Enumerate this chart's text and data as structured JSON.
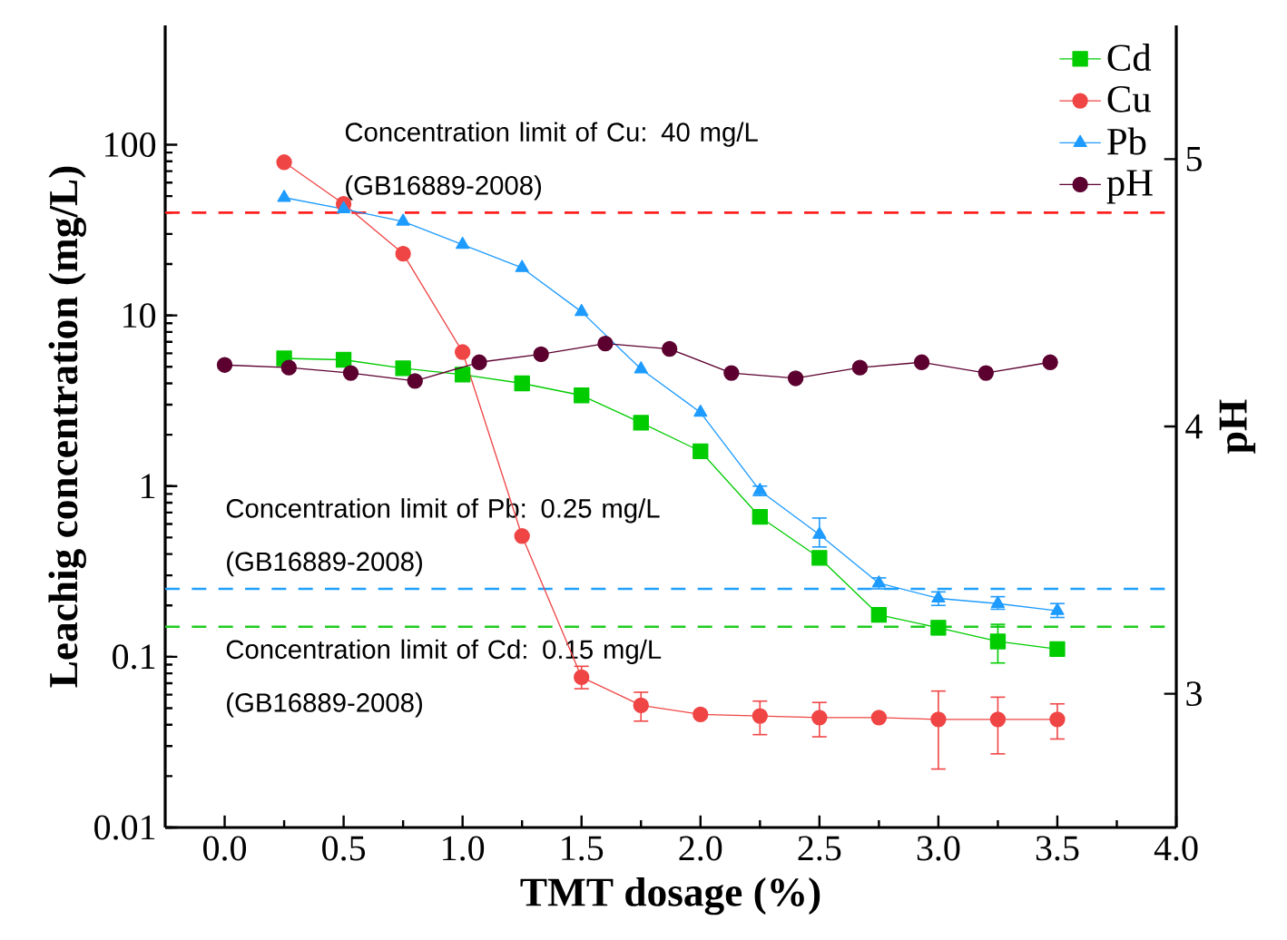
{
  "chart_data": {
    "type": "line",
    "xlabel": "TMT dosage (%)",
    "ylabel": "Leachig concentration (mg/L)",
    "y2label": "pH",
    "xlim": [
      -0.25,
      4.0
    ],
    "xticks": [
      {
        "value": 0,
        "label": "0.0"
      },
      {
        "value": 0.5,
        "label": "0.5"
      },
      {
        "value": 1,
        "label": "1.0"
      },
      {
        "value": 1.5,
        "label": "1.5"
      },
      {
        "value": 2,
        "label": "2.0"
      },
      {
        "value": 2.5,
        "label": "2.5"
      },
      {
        "value": 3,
        "label": "3.0"
      },
      {
        "value": 3.5,
        "label": "3.5"
      },
      {
        "value": 4,
        "label": "4.0"
      }
    ],
    "ylim": [
      0.01,
      500
    ],
    "yticks": [
      0.01,
      0.1,
      1,
      10,
      100
    ],
    "log": "y",
    "y2lim": [
      2.5,
      5.5
    ],
    "y2ticks": [
      3,
      4,
      5
    ],
    "grid": false,
    "legend": "top right",
    "series": [
      {
        "name": "Cd",
        "color": "#00cc00",
        "marker": "square",
        "x": [
          0.25,
          0.5,
          0.75,
          1.0,
          1.25,
          1.5,
          1.75,
          2.0,
          2.25,
          2.5,
          2.75,
          3.0,
          3.25,
          3.5
        ],
        "values": [
          5.6,
          5.5,
          4.9,
          4.5,
          4.0,
          3.4,
          2.35,
          1.6,
          0.66,
          0.38,
          0.176,
          0.148,
          0.123,
          0.111
        ],
        "errors": [
          null,
          null,
          null,
          null,
          null,
          null,
          null,
          null,
          null,
          null,
          [
            0.162,
            0.19
          ],
          [
            0.135,
            0.162
          ],
          [
            0.092,
            0.155
          ],
          [
            0.104,
            0.118
          ]
        ]
      },
      {
        "name": "Cu",
        "color": "#f04545",
        "marker": "circle",
        "x": [
          0.25,
          0.5,
          0.75,
          1.0,
          1.25,
          1.5,
          1.75,
          2.0,
          2.25,
          2.5,
          2.75,
          3.0,
          3.25,
          3.5
        ],
        "values": [
          79,
          45,
          23,
          6.1,
          0.51,
          0.076,
          0.052,
          0.046,
          0.045,
          0.044,
          0.044,
          0.043,
          0.043,
          0.043
        ],
        "errors": [
          null,
          null,
          null,
          null,
          null,
          [
            0.065,
            0.088
          ],
          [
            0.042,
            0.062
          ],
          null,
          [
            0.035,
            0.055
          ],
          [
            0.034,
            0.054
          ],
          null,
          [
            0.022,
            0.063
          ],
          [
            0.027,
            0.058
          ],
          [
            0.033,
            0.053
          ]
        ]
      },
      {
        "name": "Pb",
        "color": "#1e9bff",
        "marker": "triangle",
        "x": [
          0.25,
          0.5,
          0.75,
          1.0,
          1.25,
          1.5,
          1.75,
          2.0,
          2.25,
          2.5,
          2.75,
          3.0,
          3.25,
          3.5
        ],
        "values": [
          49,
          42,
          35.5,
          26,
          19,
          10.5,
          4.85,
          2.7,
          0.94,
          0.52,
          0.27,
          0.22,
          0.205,
          0.186
        ],
        "errors": [
          null,
          null,
          null,
          null,
          null,
          null,
          null,
          null,
          [
            0.88,
            1.0
          ],
          [
            0.44,
            0.65
          ],
          [
            0.25,
            0.29
          ],
          [
            0.2,
            0.24
          ],
          [
            0.19,
            0.225
          ],
          [
            0.17,
            0.205
          ]
        ]
      },
      {
        "name": "pH",
        "color": "#5c0030",
        "marker": "circle",
        "axis": "y2",
        "x": [
          0,
          0.27,
          0.53,
          0.8,
          1.07,
          1.33,
          1.6,
          1.87,
          2.13,
          2.4,
          2.67,
          2.93,
          3.2,
          3.47
        ],
        "values": [
          4.23,
          4.22,
          4.2,
          4.17,
          4.24,
          4.27,
          4.31,
          4.29,
          4.2,
          4.18,
          4.22,
          4.24,
          4.2,
          4.24
        ]
      }
    ],
    "ref_lines": [
      {
        "axis": "y",
        "value": 40,
        "label": "Concentration limit of Cu: 40 mg/L (GB16889-2008)",
        "color": "#ff2020",
        "line_style": "dashed"
      },
      {
        "axis": "y",
        "value": 0.25,
        "label": "Concentration limit of Pb: 0.25 mg/L (GB16889-2008)",
        "color": "#20a0ff",
        "line_style": "dashed"
      },
      {
        "axis": "y",
        "value": 0.15,
        "label": "Concentration limit of Cd: 0.15 mg/L (GB16889-2008)",
        "color": "#20cc20",
        "line_style": "dashed"
      }
    ]
  }
}
